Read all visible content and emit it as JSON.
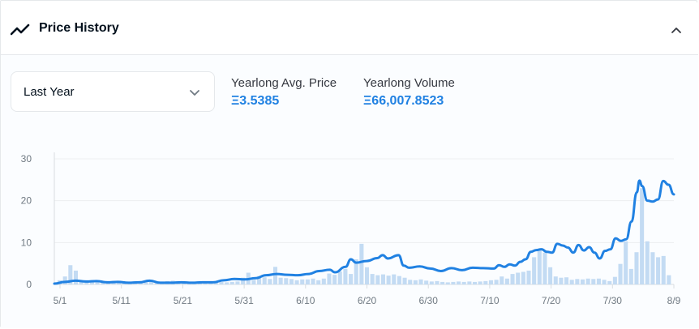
{
  "header": {
    "title": "Price History",
    "icon": "trend-line-icon",
    "collapse_icon": "chevron-up-icon"
  },
  "filter": {
    "selected": "Last Year",
    "icon": "chevron-down-icon"
  },
  "stats": {
    "avg_price_label": "Yearlong Avg. Price",
    "avg_price_value": "Ξ3.5385",
    "volume_label": "Yearlong Volume",
    "volume_value": "Ξ66,007.8523"
  },
  "colors": {
    "line": "#2081e2",
    "bars": "#c3dbf3",
    "accent_text": "#2081e2"
  },
  "chart_data": {
    "type": "bar+line",
    "x_ticks": [
      "5/1",
      "5/11",
      "5/21",
      "5/31",
      "6/10",
      "6/20",
      "6/30",
      "7/10",
      "7/20",
      "7/30",
      "8/9"
    ],
    "y_ticks": [
      "0",
      "10",
      "20",
      "30"
    ],
    "ylim": [
      0,
      30
    ],
    "days": 100,
    "grid": true,
    "series": [
      {
        "kind": "line",
        "points": [
          [
            0,
            0.2
          ],
          [
            2,
            0.6
          ],
          [
            4,
            0.9
          ],
          [
            6,
            0.7
          ],
          [
            8,
            0.8
          ],
          [
            10,
            0.5
          ],
          [
            12,
            0.6
          ],
          [
            14,
            0.4
          ],
          [
            16,
            0.5
          ],
          [
            18,
            0.9
          ],
          [
            20,
            0.4
          ],
          [
            22,
            0.4
          ],
          [
            24,
            0.5
          ],
          [
            26,
            0.4
          ],
          [
            28,
            0.5
          ],
          [
            30,
            0.5
          ],
          [
            32,
            1.0
          ],
          [
            34,
            1.3
          ],
          [
            36,
            1.2
          ],
          [
            38,
            1.5
          ],
          [
            40,
            2.2
          ],
          [
            42,
            2.5
          ],
          [
            44,
            2.3
          ],
          [
            46,
            2.2
          ],
          [
            48,
            2.5
          ],
          [
            50,
            3.2
          ],
          [
            52,
            3.5
          ],
          [
            53,
            2.9
          ],
          [
            55,
            4.2
          ],
          [
            56,
            6.0
          ],
          [
            57,
            5.2
          ],
          [
            59,
            5.6
          ],
          [
            61,
            6.3
          ],
          [
            62,
            7.0
          ],
          [
            63,
            6.2
          ],
          [
            65,
            7.0
          ],
          [
            66,
            4.5
          ],
          [
            67,
            4.0
          ],
          [
            69,
            4.3
          ],
          [
            71,
            3.8
          ],
          [
            73,
            3.2
          ],
          [
            75,
            3.9
          ],
          [
            77,
            3.4
          ],
          [
            79,
            4.0
          ],
          [
            81,
            3.9
          ],
          [
            83,
            3.8
          ],
          [
            84,
            4.6
          ],
          [
            85,
            4.2
          ],
          [
            86,
            4.8
          ],
          [
            87,
            4.5
          ],
          [
            88,
            5.4
          ],
          [
            89,
            6.0
          ],
          [
            90,
            7.8
          ],
          [
            91,
            8.2
          ],
          [
            92,
            8.4
          ],
          [
            93,
            7.8
          ],
          [
            94,
            7.6
          ],
          [
            95,
            9.7
          ],
          [
            96,
            9.3
          ],
          [
            97,
            8.8
          ],
          [
            98,
            7.6
          ],
          [
            99,
            9.4
          ],
          [
            100,
            8.1
          ],
          [
            101,
            8.9
          ],
          [
            102,
            7.6
          ],
          [
            103,
            6.2
          ],
          [
            104,
            8.0
          ],
          [
            105,
            8.4
          ],
          [
            106,
            11.0
          ],
          [
            107,
            10.4
          ],
          [
            108,
            10.8
          ],
          [
            109,
            15.0
          ],
          [
            110,
            22.0
          ],
          [
            110.5,
            24.8
          ],
          [
            111,
            23.5
          ],
          [
            112,
            20.0
          ],
          [
            113,
            19.8
          ],
          [
            114,
            20.3
          ],
          [
            115,
            24.7
          ],
          [
            116,
            23.8
          ],
          [
            117,
            21.5
          ]
        ]
      },
      {
        "kind": "bar",
        "values": [
          1.0,
          1.9,
          4.6,
          3.3,
          0.9,
          0.7,
          0.8,
          0.6,
          0.5,
          0.7,
          0.8,
          0.6,
          0.5,
          0.4,
          0.4,
          0.5,
          0.6,
          0.6,
          0.5,
          0.6,
          0.8,
          0.9,
          0.7,
          0.5,
          0.5,
          0.5,
          0.4,
          0.5,
          0.5,
          0.6,
          0.6,
          0.5,
          0.6,
          0.7,
          1.6,
          2.8,
          1.1,
          2.0,
          1.7,
          1.3,
          4.2,
          1.6,
          1.5,
          1.3,
          1.0,
          1.2,
          1.2,
          1.4,
          1.0,
          1.4,
          2.6,
          2.3,
          3.1,
          3.7,
          2.5,
          6.0,
          9.7,
          4.1,
          2.5,
          2.2,
          2.4,
          2.1,
          2.4,
          2.0,
          1.6,
          1.1,
          1.0,
          1.2,
          0.9,
          0.7,
          0.8,
          0.6,
          0.5,
          0.6,
          0.7,
          0.6,
          0.7,
          0.6,
          0.7,
          0.8,
          1.0,
          1.1,
          1.9,
          1.4,
          2.5,
          2.8,
          3.0,
          3.3,
          6.5,
          8.3,
          7.6,
          4.1,
          1.9,
          1.6,
          1.7,
          1.1,
          1.3,
          1.2,
          1.4,
          1.3,
          1.4,
          1.1,
          0.8,
          1.8,
          4.9,
          10.3,
          3.7,
          7.7,
          23.0,
          10.3,
          7.7,
          6.5,
          6.8,
          2.2
        ]
      }
    ]
  }
}
